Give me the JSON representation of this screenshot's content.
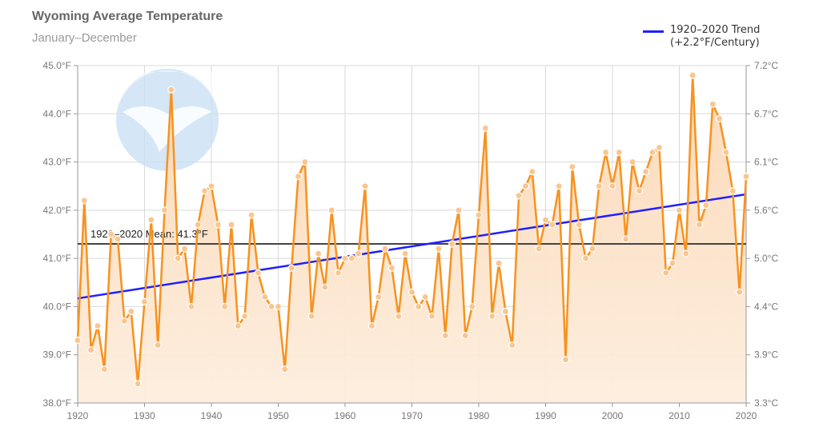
{
  "colors": {
    "series": "#f7921e",
    "series_fill_top": "#fbd7b4",
    "series_fill_bottom": "#fdeede",
    "marker_fill": "#fbc58f",
    "trend": "#1f1fff",
    "mean": "#444444",
    "grid": "#d9d9d9",
    "axis_text": "#777777",
    "logo": "#c7ddf3"
  },
  "chart_data": {
    "type": "line",
    "title": "Wyoming Average Temperature",
    "subtitle": "January–December",
    "xlabel": "",
    "ylabel": "",
    "xlim": [
      1920,
      2020
    ],
    "ylim": [
      38.0,
      45.0
    ],
    "grid": true,
    "legend_position": "top-right",
    "x_ticks": [
      "1920",
      "1930",
      "1940",
      "1950",
      "1960",
      "1970",
      "1980",
      "1990",
      "2000",
      "2010",
      "2020"
    ],
    "y_ticks_left": [
      "38.0°F",
      "39.0°F",
      "40.0°F",
      "41.0°F",
      "42.0°F",
      "43.0°F",
      "44.0°F",
      "45.0°F"
    ],
    "y_ticks_right": [
      {
        "label": "3.3°C",
        "f": 38.0
      },
      {
        "label": "3.9°C",
        "f": 39.0
      },
      {
        "label": "4.4°C",
        "f": 40.0
      },
      {
        "label": "5.0°C",
        "f": 41.0
      },
      {
        "label": "5.6°C",
        "f": 42.0
      },
      {
        "label": "6.1°C",
        "f": 43.0
      },
      {
        "label": "6.7°C",
        "f": 44.0
      },
      {
        "label": "7.2°C",
        "f": 45.0
      }
    ],
    "series": [
      {
        "start_year": 1920,
        "values": [
          39.3,
          42.2,
          39.1,
          39.6,
          38.7,
          41.5,
          41.4,
          39.7,
          39.9,
          38.4,
          40.1,
          41.8,
          39.2,
          42.0,
          44.5,
          41.0,
          41.2,
          40.0,
          41.7,
          42.4,
          42.5,
          41.7,
          40.0,
          41.7,
          39.6,
          39.8,
          41.9,
          40.7,
          40.2,
          40.0,
          40.0,
          38.7,
          40.8,
          42.7,
          43.0,
          39.8,
          41.1,
          40.4,
          42.0,
          40.7,
          41.0,
          41.0,
          41.1,
          42.5,
          39.6,
          40.2,
          41.2,
          40.8,
          39.8,
          41.1,
          40.3,
          40.0,
          40.2,
          39.8,
          41.2,
          39.4,
          41.3,
          42.0,
          39.4,
          40.0,
          41.9,
          43.7,
          39.8,
          40.9,
          39.9,
          39.2,
          42.3,
          42.5,
          42.8,
          41.2,
          41.8,
          41.7,
          42.5,
          38.9,
          42.9,
          41.7,
          41.0,
          41.2,
          42.5,
          43.2,
          42.5,
          43.2,
          41.4,
          43.0,
          42.4,
          42.8,
          43.2,
          43.3,
          40.7,
          40.9,
          42.0,
          41.1,
          44.8,
          41.7,
          42.1,
          44.2,
          43.9,
          43.2,
          42.4,
          40.3,
          42.7
        ]
      }
    ],
    "trend": {
      "name": "1920–2020 Trend",
      "note": "(+2.2°F/Century)",
      "x": [
        1920,
        2020
      ],
      "y": [
        40.17,
        42.33
      ]
    },
    "mean": {
      "label": "1920–2020 Mean: 41.3°F",
      "value": 41.3
    }
  }
}
